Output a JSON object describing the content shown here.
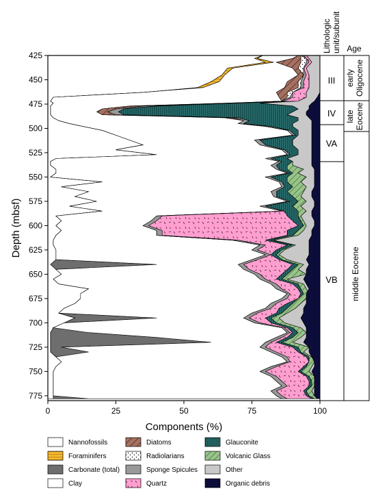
{
  "chart_data": {
    "type": "area",
    "stacked": true,
    "orientation": "vertical-depth",
    "xlabel": "Components (%)",
    "ylabel": "Depth (mbsf)",
    "xlim": [
      0,
      100
    ],
    "ylim": [
      425,
      780
    ],
    "y_inverted": true,
    "x_ticks": [
      "0",
      "25",
      "50",
      "75",
      "100"
    ],
    "y_ticks": [
      "425",
      "450",
      "475",
      "500",
      "525",
      "550",
      "575",
      "600",
      "625",
      "650",
      "675",
      "700",
      "725",
      "750",
      "775"
    ],
    "column_headers": {
      "unit": "Lithologic unit/subunit",
      "age": "Age"
    },
    "units": [
      {
        "label": "III",
        "top": 425,
        "bottom": 473
      },
      {
        "label": "IV",
        "top": 473,
        "bottom": 492
      },
      {
        "label": "VA",
        "top": 492,
        "bottom": 532
      },
      {
        "label": "VB",
        "top": 532,
        "bottom": 780
      }
    ],
    "ages": [
      {
        "label": "early Oligocene",
        "top": 425,
        "bottom": 473
      },
      {
        "label": "late Eocene",
        "top": 473,
        "bottom": 500
      },
      {
        "label": "middle Eocene",
        "top": 500,
        "bottom": 780
      }
    ],
    "legend_position": "bottom",
    "series": [
      {
        "name": "Nannofossils",
        "color": "#ffffff",
        "pattern": "none"
      },
      {
        "name": "Foraminifers",
        "color": "#f5b82e",
        "pattern": "bands"
      },
      {
        "name": "Carbonate (total)",
        "color": "#6e6e6e",
        "pattern": "none"
      },
      {
        "name": "Clay",
        "color": "#ffffff",
        "pattern": "none"
      },
      {
        "name": "Diatoms",
        "color": "#a67060",
        "pattern": "diagonal"
      },
      {
        "name": "Radiolarians",
        "color": "#ffffff",
        "pattern": "dots"
      },
      {
        "name": "Sponge Spicules",
        "color": "#999999",
        "pattern": "none"
      },
      {
        "name": "Quartz",
        "color": "#ff9fd0",
        "pattern": "dashes"
      },
      {
        "name": "Glauconite",
        "color": "#2e7575",
        "pattern": "vertical"
      },
      {
        "name": "Volcanic Glass",
        "color": "#98c48a",
        "pattern": "diagonal"
      },
      {
        "name": "Other",
        "color": "#c8c8c8",
        "pattern": "none"
      },
      {
        "name": "Organic debris",
        "color": "#0d0d3b",
        "pattern": "none"
      }
    ],
    "depth": [
      425,
      428,
      432,
      438,
      445,
      452,
      458,
      463,
      468,
      472,
      474,
      477,
      480,
      483,
      486,
      489,
      492,
      495,
      498,
      502,
      507,
      512,
      517,
      522,
      527,
      531,
      534,
      538,
      542,
      546,
      550,
      555,
      560,
      565,
      570,
      575,
      580,
      585,
      590,
      595,
      600,
      605,
      610,
      615,
      620,
      625,
      630,
      635,
      640,
      645,
      650,
      655,
      660,
      665,
      670,
      675,
      680,
      685,
      690,
      695,
      700,
      705,
      710,
      715,
      720,
      725,
      730,
      735,
      740,
      745,
      750,
      755,
      760,
      765,
      770,
      775,
      778
    ],
    "boundaries": {
      "Nannofossils": [
        79,
        76,
        80,
        66,
        64,
        60,
        55,
        35,
        2,
        1,
        2,
        1,
        1,
        1,
        1,
        2,
        4,
        8,
        13,
        20,
        25,
        30,
        35,
        25,
        40,
        3,
        1,
        1,
        3,
        3,
        1,
        20,
        5,
        15,
        10,
        18,
        8,
        20,
        3,
        5,
        3,
        5,
        3,
        2,
        2,
        3,
        3,
        3,
        1,
        3,
        5,
        2,
        4,
        15,
        12,
        12,
        10,
        6,
        4,
        10,
        6,
        2,
        1,
        1,
        1,
        1,
        1,
        3,
        5,
        3,
        2,
        2,
        2,
        2,
        2,
        2,
        2
      ],
      "Foraminifers": [
        79,
        77,
        83,
        68,
        65,
        63,
        57,
        35,
        2,
        1,
        2,
        1,
        1,
        1,
        1,
        2,
        4,
        8,
        13,
        20,
        25,
        30,
        35,
        25,
        40,
        3,
        1,
        1,
        3,
        3,
        1,
        20,
        5,
        15,
        10,
        18,
        8,
        20,
        3,
        5,
        3,
        5,
        3,
        2,
        2,
        3,
        3,
        3,
        1,
        3,
        5,
        2,
        4,
        15,
        12,
        12,
        10,
        6,
        4,
        10,
        6,
        2,
        1,
        1,
        1,
        1,
        1,
        3,
        5,
        3,
        2,
        2,
        2,
        2,
        2,
        2,
        2
      ],
      "Carbonate (total)": [
        79,
        77,
        83,
        68,
        65,
        63,
        57,
        35,
        2,
        1,
        2,
        1,
        1,
        1,
        1,
        2,
        4,
        8,
        13,
        20,
        25,
        30,
        35,
        25,
        40,
        3,
        1,
        1,
        3,
        3,
        1,
        20,
        5,
        15,
        10,
        18,
        8,
        20,
        3,
        5,
        3,
        5,
        3,
        2,
        2,
        3,
        3,
        3,
        40,
        3,
        5,
        2,
        4,
        15,
        12,
        12,
        10,
        6,
        4,
        40,
        6,
        2,
        15,
        40,
        60,
        5,
        15,
        3,
        5,
        3,
        2,
        2,
        2,
        2,
        2,
        2,
        15
      ],
      "Clay": [
        92,
        90,
        84,
        90,
        92,
        88,
        87,
        84,
        85,
        86,
        66,
        30,
        20,
        18,
        20,
        65,
        72,
        70,
        80,
        88,
        90,
        76,
        78,
        86,
        88,
        80,
        85,
        82,
        84,
        88,
        80,
        85,
        86,
        82,
        83,
        88,
        78,
        86,
        40,
        38,
        35,
        40,
        40,
        68,
        78,
        75,
        80,
        75,
        70,
        72,
        76,
        78,
        82,
        84,
        88,
        86,
        82,
        80,
        75,
        72,
        76,
        86,
        88,
        84,
        80,
        78,
        82,
        86,
        88,
        82,
        78,
        82,
        84,
        86,
        82,
        84,
        86
      ],
      "Diatoms": [
        93,
        93,
        93,
        92,
        94,
        92,
        92,
        88,
        88,
        86,
        68,
        35,
        25,
        22,
        25,
        68,
        72,
        70,
        80,
        88,
        90,
        76,
        78,
        86,
        88,
        80,
        85,
        82,
        84,
        88,
        80,
        85,
        86,
        82,
        83,
        88,
        78,
        86,
        40,
        38,
        35,
        40,
        40,
        68,
        78,
        75,
        80,
        75,
        70,
        72,
        76,
        78,
        82,
        84,
        88,
        86,
        82,
        80,
        75,
        72,
        76,
        86,
        88,
        84,
        80,
        78,
        82,
        86,
        88,
        82,
        78,
        82,
        84,
        86,
        82,
        84,
        86
      ],
      "Radiolarians": [
        93,
        95,
        95,
        94,
        94,
        93,
        93,
        90,
        89,
        86,
        68,
        35,
        25,
        22,
        25,
        68,
        72,
        70,
        80,
        88,
        90,
        76,
        78,
        86,
        88,
        80,
        85,
        82,
        84,
        88,
        80,
        85,
        86,
        82,
        83,
        88,
        78,
        86,
        40,
        38,
        35,
        40,
        40,
        68,
        78,
        75,
        80,
        75,
        70,
        72,
        76,
        78,
        82,
        84,
        88,
        86,
        82,
        80,
        75,
        72,
        76,
        86,
        88,
        84,
        80,
        78,
        82,
        86,
        88,
        82,
        78,
        82,
        84,
        86,
        82,
        84,
        86
      ],
      "Sponge Spicules": [
        94,
        95,
        96,
        94,
        95,
        94,
        94,
        90,
        90,
        87,
        70,
        40,
        28,
        26,
        28,
        70,
        74,
        72,
        82,
        89,
        91,
        78,
        80,
        87,
        89,
        82,
        86,
        84,
        85,
        89,
        82,
        86,
        87,
        84,
        84,
        89,
        80,
        87,
        42,
        40,
        37,
        42,
        42,
        70,
        80,
        77,
        82,
        77,
        72,
        74,
        78,
        80,
        84,
        86,
        89,
        88,
        84,
        82,
        77,
        74,
        78,
        87,
        89,
        86,
        82,
        80,
        84,
        88,
        89,
        84,
        80,
        84,
        86,
        88,
        84,
        86,
        88
      ],
      "Quartz": [
        95,
        96,
        97,
        95,
        96,
        96,
        96,
        95,
        95,
        92,
        70,
        40,
        28,
        26,
        28,
        70,
        74,
        72,
        82,
        89,
        91,
        78,
        80,
        87,
        89,
        82,
        86,
        84,
        85,
        89,
        82,
        86,
        87,
        84,
        84,
        89,
        80,
        87,
        88,
        90,
        92,
        88,
        88,
        80,
        88,
        84,
        82,
        85,
        90,
        88,
        86,
        84,
        90,
        92,
        93,
        92,
        88,
        85,
        84,
        80,
        82,
        88,
        90,
        88,
        84,
        90,
        92,
        95,
        96,
        94,
        92,
        95,
        96,
        96,
        94,
        95,
        97
      ],
      "Glauconite": [
        95,
        96,
        97,
        95,
        96,
        96,
        96,
        95,
        95,
        92,
        78,
        90,
        92,
        90,
        88,
        92,
        92,
        90,
        90,
        92,
        92,
        90,
        90,
        92,
        92,
        88,
        90,
        88,
        88,
        90,
        88,
        88,
        90,
        88,
        90,
        92,
        90,
        92,
        92,
        93,
        94,
        92,
        90,
        82,
        90,
        86,
        84,
        86,
        92,
        90,
        88,
        86,
        92,
        93,
        94,
        92,
        90,
        88,
        86,
        82,
        84,
        90,
        92,
        90,
        86,
        92,
        93,
        96,
        96,
        95,
        93,
        96,
        97,
        97,
        95,
        96,
        98
      ],
      "Volcanic Glass": [
        95,
        96,
        97,
        95,
        96,
        96,
        96,
        95,
        95,
        92,
        78,
        90,
        92,
        90,
        88,
        92,
        92,
        90,
        90,
        92,
        92,
        90,
        90,
        92,
        92,
        88,
        90,
        90,
        94,
        92,
        95,
        93,
        95,
        94,
        93,
        95,
        93,
        95,
        93,
        94,
        95,
        94,
        92,
        83,
        91,
        87,
        85,
        88,
        94,
        92,
        95,
        88,
        94,
        95,
        96,
        95,
        93,
        91,
        88,
        85,
        87,
        93,
        95,
        93,
        90,
        96,
        94,
        97,
        98,
        97,
        96,
        98,
        98,
        98,
        97,
        98,
        99
      ],
      "Other": [
        100,
        100,
        100,
        100,
        100,
        100,
        100,
        100,
        99,
        98,
        97,
        96,
        96,
        95,
        95,
        96,
        97,
        97,
        97,
        97,
        97,
        97,
        97,
        97,
        97,
        97,
        97,
        97,
        98,
        98,
        98,
        98,
        98,
        97,
        97,
        98,
        98,
        97,
        97,
        98,
        98,
        97,
        97,
        96,
        96,
        96,
        96,
        95,
        96,
        95,
        95,
        94,
        95,
        96,
        95,
        95,
        95,
        94,
        94,
        93,
        94,
        95,
        95,
        95,
        94,
        96,
        96,
        97,
        98,
        98,
        97,
        98,
        98,
        98,
        98,
        98,
        99
      ],
      "Organic debris": [
        100,
        100,
        100,
        100,
        100,
        100,
        100,
        100,
        100,
        100,
        100,
        100,
        100,
        100,
        100,
        100,
        100,
        100,
        100,
        100,
        100,
        100,
        100,
        100,
        100,
        100,
        100,
        100,
        100,
        100,
        100,
        100,
        100,
        100,
        100,
        100,
        100,
        100,
        100,
        100,
        100,
        100,
        100,
        100,
        100,
        100,
        100,
        100,
        100,
        100,
        100,
        100,
        100,
        100,
        100,
        100,
        100,
        100,
        100,
        100,
        100,
        100,
        100,
        100,
        100,
        100,
        100,
        100,
        100,
        100,
        100,
        100,
        100,
        100,
        100,
        100,
        100
      ]
    }
  }
}
